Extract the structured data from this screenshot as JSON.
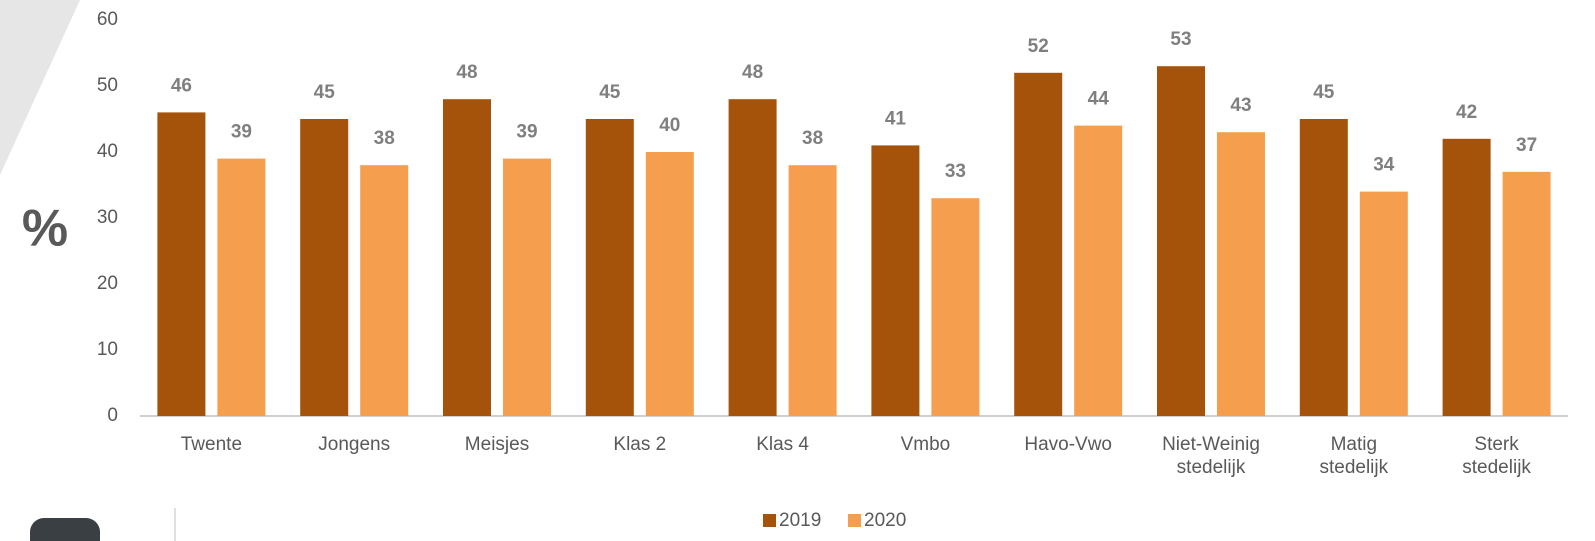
{
  "chart_data": {
    "type": "bar",
    "y_label": "%",
    "categories": [
      "Twente",
      "Jongens",
      "Meisjes",
      "Klas 2",
      "Klas 4",
      "Vmbo",
      "Havo-Vwo",
      "Niet-Weinig\nstedelijk",
      "Matig\nstedelijk",
      "Sterk\nstedelijk"
    ],
    "series": [
      {
        "name": "2019",
        "color": "#a5520a",
        "values": [
          46,
          45,
          48,
          45,
          48,
          41,
          52,
          53,
          45,
          42
        ]
      },
      {
        "name": "2020",
        "color": "#f59e4e",
        "values": [
          39,
          38,
          39,
          40,
          38,
          33,
          44,
          43,
          34,
          37
        ]
      }
    ],
    "ylim": [
      0,
      60
    ],
    "yticks": [
      0,
      10,
      20,
      30,
      40,
      50,
      60
    ],
    "grid": false,
    "legend": "bottom"
  }
}
